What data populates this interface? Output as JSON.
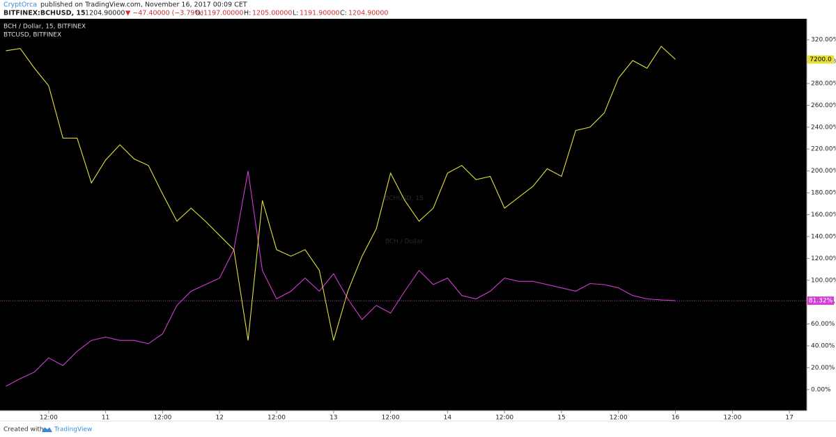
{
  "header": {
    "author": "CryptOrca",
    "published": "published on TradingView.com, November 16, 2017 00:09 CET",
    "symbol": "BITFINEX:BCHUSD, 15",
    "price": "1204.90000",
    "change": "▼ −47.40000 (−3.79%)",
    "open_label": "O:",
    "open": "1197.00000",
    "high_label": "H:",
    "high": "1205.00000",
    "low_label": "L:",
    "low": "1191.90000",
    "close_label": "C:",
    "close": "1204.90000"
  },
  "chart_data": {
    "type": "line",
    "title": "BCH / Dollar, 15, BITFINEX",
    "watermark": "BCHUSD, 15",
    "watermark_sub": "BCH / Dollar",
    "x": [
      10.125,
      10.25,
      10.375,
      10.5,
      10.625,
      10.75,
      10.875,
      11,
      11.125,
      11.25,
      11.375,
      11.5,
      11.625,
      11.75,
      11.875,
      12,
      12.125,
      12.25,
      12.375,
      12.5,
      12.625,
      12.75,
      12.875,
      13,
      13.125,
      13.25,
      13.375,
      13.5,
      13.625,
      13.75,
      13.875,
      14,
      14.125,
      14.25,
      14.375,
      14.5,
      14.625,
      14.75,
      14.875,
      15,
      15.125,
      15.25,
      15.375,
      15.5,
      15.625,
      15.75,
      15.875,
      16
    ],
    "series": [
      {
        "name": "BCH / Dollar, 15, BITFINEX",
        "color": "#d63cd6",
        "price_label": "81.32%",
        "values": [
          3,
          10,
          16,
          29,
          22,
          35,
          45,
          48,
          45,
          45,
          42,
          51,
          77,
          90,
          96,
          102,
          128,
          200,
          109,
          83,
          90,
          102,
          90,
          106,
          83,
          64,
          77,
          70,
          90,
          109,
          96,
          102,
          86,
          83,
          90,
          102,
          99,
          99,
          96,
          93,
          90,
          97,
          96,
          93,
          86,
          83,
          82,
          81.32
        ]
      },
      {
        "name": "BTCUSD, BITFINEX",
        "color": "#e6e03a",
        "price_label": "7200.0",
        "values": [
          310,
          312,
          294,
          278,
          230,
          230,
          189,
          210,
          224,
          211,
          205,
          179,
          154,
          166,
          154,
          141,
          128,
          45,
          173,
          128,
          122,
          128,
          109,
          45,
          90,
          122,
          147,
          198,
          173,
          154,
          166,
          198,
          205,
          192,
          195,
          166,
          176,
          186,
          202,
          195,
          237,
          240,
          253,
          285,
          301,
          294,
          314,
          302
        ]
      }
    ],
    "xlim": [
      10.073,
      17.152
    ],
    "xticks": [
      {
        "value": 10.5,
        "label": "12:00"
      },
      11,
      {
        "value": 11.5,
        "label": "12:00"
      },
      12,
      {
        "value": 12.5,
        "label": "12:00"
      },
      13,
      {
        "value": 13.5,
        "label": "12:00"
      },
      14,
      {
        "value": 14.5,
        "label": "12:00"
      },
      15,
      {
        "value": 15.5,
        "label": "12:00"
      },
      16,
      {
        "value": 16.5,
        "label": "12:00"
      },
      17
    ],
    "ylim": [
      -19.2,
      339.2
    ],
    "yticks": [
      {
        "value": 0,
        "label": "0.00%"
      },
      {
        "value": 20,
        "label": "20.00%"
      },
      {
        "value": 40,
        "label": "40.00%"
      },
      {
        "value": 60,
        "label": "60.00%"
      },
      {
        "value": 80,
        "label": "80.00%"
      },
      {
        "value": 100,
        "label": "100.00%"
      },
      {
        "value": 120,
        "label": "120.00%"
      },
      {
        "value": 140,
        "label": "140.00%"
      },
      {
        "value": 160,
        "label": "160.00%"
      },
      {
        "value": 180,
        "label": "180.00%"
      },
      {
        "value": 200,
        "label": "200.00%"
      },
      {
        "value": 220,
        "label": "220.00%"
      },
      {
        "value": 240,
        "label": "240.00%"
      },
      {
        "value": 260,
        "label": "260.00%"
      },
      {
        "value": 280,
        "label": "280.00%"
      },
      {
        "value": 300,
        "label": "300.00%"
      },
      {
        "value": 320,
        "label": "320.00%"
      }
    ],
    "grid": false
  },
  "footer": {
    "created": "Created with",
    "brand": "TradingView"
  }
}
